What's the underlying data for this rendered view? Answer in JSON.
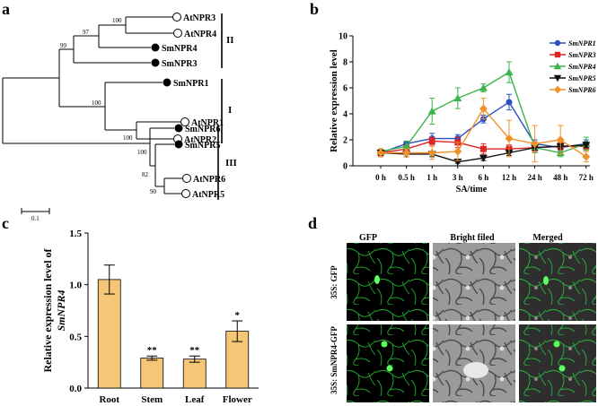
{
  "panels": {
    "a": "a",
    "b": "b",
    "c": "c",
    "d": "d"
  },
  "tree": {
    "leaves": [
      {
        "name": "AtNPR3",
        "filled": false
      },
      {
        "name": "AtNPR4",
        "filled": false
      },
      {
        "name": "SmNPR4",
        "filled": true
      },
      {
        "name": "SmNPR3",
        "filled": true
      },
      {
        "name": "SmNPR1",
        "filled": true
      },
      {
        "name": "AtNPR1",
        "filled": false
      },
      {
        "name": "AtNPR2",
        "filled": false
      },
      {
        "name": "SmNPR6",
        "filled": true
      },
      {
        "name": "SmNPR5",
        "filled": true
      },
      {
        "name": "AtNPR6",
        "filled": false
      },
      {
        "name": "AtNPR5",
        "filled": false
      }
    ],
    "bootstrap": [
      "100",
      "97",
      "99",
      "100",
      "100",
      "100",
      "82",
      "90"
    ],
    "groups": [
      "II",
      "I",
      "III"
    ],
    "scale_label": "0.1"
  },
  "chart_data": [
    {
      "type": "line",
      "panel": "b",
      "categories": [
        "0 h",
        "0.5 h",
        "1 h",
        "3 h",
        "6 h",
        "12 h",
        "24 h",
        "48 h",
        "72 h"
      ],
      "xlabel": "SA/time",
      "ylabel": "Relative expression level",
      "ylim": [
        0,
        10
      ],
      "yticks": [
        "0",
        "2",
        "4",
        "6",
        "8",
        "10"
      ],
      "legend_position": "top-right",
      "series": [
        {
          "name": "SmNPR1",
          "color": "#2a4fbf",
          "marker": "circle",
          "values": [
            1.0,
            1.7,
            2.1,
            2.1,
            3.6,
            4.9,
            1.7,
            1.4,
            1.7
          ],
          "errors": [
            0.3,
            0.2,
            0.4,
            0.3,
            0.3,
            0.6,
            0.3,
            0.3,
            0.3
          ]
        },
        {
          "name": "SmNPR3",
          "color": "#e02424",
          "marker": "square",
          "values": [
            1.0,
            1.3,
            1.9,
            1.8,
            1.3,
            1.3,
            1.4,
            1.5,
            1.5
          ],
          "errors": [
            0.3,
            0.3,
            0.3,
            0.4,
            0.4,
            0.3,
            0.3,
            0.3,
            0.3
          ]
        },
        {
          "name": "SmNPR4",
          "color": "#3cb44b",
          "marker": "triangle-up",
          "values": [
            1.1,
            1.5,
            4.2,
            5.2,
            6.0,
            7.2,
            1.4,
            1.0,
            1.7
          ],
          "errors": [
            0.2,
            0.4,
            1.0,
            0.8,
            0.3,
            0.8,
            0.4,
            0.3,
            0.5
          ]
        },
        {
          "name": "SmNPR5",
          "color": "#111111",
          "marker": "triangle-down",
          "values": [
            1.0,
            0.9,
            0.9,
            0.3,
            0.6,
            1.0,
            1.4,
            1.5,
            1.6
          ],
          "errors": [
            0.2,
            0.2,
            0.2,
            0.1,
            0.2,
            0.2,
            0.2,
            0.2,
            0.2
          ]
        },
        {
          "name": "SmNPR6",
          "color": "#f0922b",
          "marker": "diamond",
          "values": [
            1.0,
            1.0,
            1.0,
            1.1,
            4.4,
            2.1,
            1.7,
            2.0,
            0.7
          ],
          "errors": [
            0.3,
            0.3,
            0.5,
            0.7,
            0.8,
            1.4,
            1.4,
            1.1,
            0.4
          ]
        }
      ]
    },
    {
      "type": "bar",
      "panel": "c",
      "categories": [
        "Root",
        "Stem",
        "Leaf",
        "Flower"
      ],
      "values": [
        1.05,
        0.29,
        0.28,
        0.55
      ],
      "errors": [
        0.14,
        0.02,
        0.03,
        0.1
      ],
      "significance": [
        "",
        "**",
        "**",
        "*"
      ],
      "ylabel_prefix": "Relative expression level of",
      "ylabel_gene": "SmNPR4",
      "ylim": [
        0,
        1.5
      ],
      "yticks": [
        "0.0",
        "0.5",
        "1.0",
        "1.5"
      ],
      "bar_color": "#f6c677"
    }
  ],
  "micrographs": {
    "columns": [
      "GFP",
      "Bright filed",
      "Merged"
    ],
    "rows": [
      "35S: GFP",
      "35S: SmNPR4-GFP"
    ]
  }
}
